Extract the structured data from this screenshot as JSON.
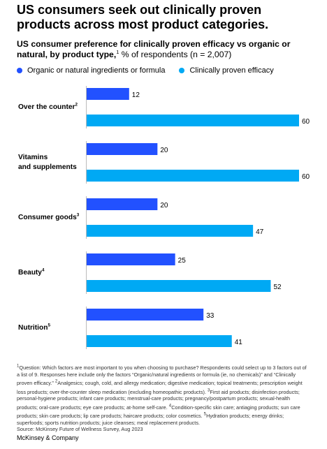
{
  "title": "US consumers seek out clinically proven products across most product categories.",
  "subtitle": {
    "bold": "US consumer preference for clinically proven efficacy vs organic or natural, by product type,",
    "sup": "1",
    "rest": " % of respondents (n = 2,007)"
  },
  "legend": [
    {
      "label": "Organic or natural ingredients or formula",
      "color": "#2251ff"
    },
    {
      "label": "Clinically proven efficacy",
      "color": "#00a9f4"
    }
  ],
  "chart_data": {
    "type": "bar",
    "orientation": "horizontal",
    "categories": [
      {
        "label": "Over the counter",
        "sup": "2"
      },
      {
        "label": "Vitamins and supplements",
        "sup": ""
      },
      {
        "label": "Consumer goods",
        "sup": "3"
      },
      {
        "label": "Beauty",
        "sup": "4"
      },
      {
        "label": "Nutrition",
        "sup": "5"
      }
    ],
    "series": [
      {
        "name": "Organic or natural ingredients or formula",
        "color": "#2251ff",
        "values": [
          12,
          20,
          20,
          25,
          33
        ]
      },
      {
        "name": "Clinically proven efficacy",
        "color": "#00a9f4",
        "values": [
          60,
          60,
          47,
          52,
          41
        ]
      }
    ],
    "xlim": [
      0,
      60
    ],
    "unit": "% of respondents"
  },
  "notes": [
    {
      "sup": "1",
      "text": "Question: Which factors are most important to you when choosing to purchase? Respondents could select up to 3 factors out of a list of 9. Responses here include only the factors “Organic/natural ingredients or formula (ie, no chemicals)” and “Clinically proven efficacy.” "
    },
    {
      "sup": "2",
      "text": "Analgesics; cough, cold, and allergy medication; digestive medication; topical treatments; prescription weight loss products; over-the-counter sleep medication (excluding homeopathic products). "
    },
    {
      "sup": "3",
      "text": "First aid products; disinfection products; personal-hygiene products; infant care products; menstrual-care products; pregnancy/postpartum products; sexual-health products; oral-care products; eye care products; at-home self-care. "
    },
    {
      "sup": "4",
      "text": "Condition-specific skin care; antiaging products; sun care products; skin care products; lip care products; haircare products; color cosmetics. "
    },
    {
      "sup": "5",
      "text": "Hydration products; energy drinks; superfoods; sports nutrition products; juice cleanses; meal replacement products."
    }
  ],
  "source": "Source: McKinsey Future of Wellness Survey, Aug 2023",
  "brand": "McKinsey & Company"
}
